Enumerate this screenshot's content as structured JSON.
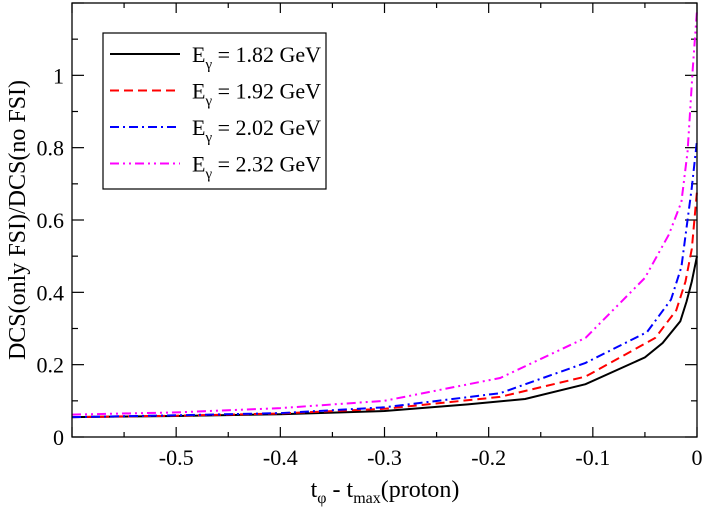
{
  "chart_data": {
    "type": "line",
    "title": "",
    "xlabel": {
      "main": "t",
      "sub1": "φ",
      "mid": " - t",
      "sub2": "max",
      "tail": "(proton)"
    },
    "ylabel": "DCS(only FSI)/DCS(no FSI)",
    "xlim": [
      -0.6,
      0
    ],
    "ylim": [
      0,
      1.2
    ],
    "xticks": [
      -0.5,
      -0.4,
      -0.3,
      -0.2,
      -0.1,
      0
    ],
    "xtick_labels": [
      "-0.5",
      "-0.4",
      "-0.3",
      "-0.2",
      "-0.1",
      "0"
    ],
    "yticks": [
      0,
      0.2,
      0.4,
      0.6,
      0.8,
      1
    ],
    "ytick_labels": [
      "0",
      "0.2",
      "0.4",
      "0.6",
      "0.8",
      "1"
    ],
    "grid": false,
    "legend_placement": "top-left",
    "series": [
      {
        "name": "E_γ = 1.82 GeV",
        "label_main": "E",
        "label_sub": "γ",
        "label_rest": " = 1.82 GeV",
        "color": "#000000",
        "dash": "solid",
        "x": [
          -0.6,
          -0.5,
          -0.4,
          -0.3,
          -0.22,
          -0.165,
          -0.107,
          -0.05,
          -0.033,
          -0.016,
          -0.01,
          -0.005,
          0
        ],
        "y": [
          0.055,
          0.058,
          0.063,
          0.072,
          0.09,
          0.105,
          0.146,
          0.22,
          0.26,
          0.32,
          0.375,
          0.43,
          0.5
        ]
      },
      {
        "name": "E_γ = 1.92 GeV",
        "label_main": "E",
        "label_sub": "γ",
        "label_rest": " = 1.92 GeV",
        "color": "#ff0000",
        "dash": "dashed",
        "x": [
          -0.6,
          -0.5,
          -0.4,
          -0.3,
          -0.189,
          -0.107,
          -0.04,
          -0.02,
          -0.011,
          -0.005,
          0
        ],
        "y": [
          0.055,
          0.059,
          0.065,
          0.078,
          0.111,
          0.167,
          0.274,
          0.35,
          0.43,
          0.52,
          0.68
        ]
      },
      {
        "name": "E_γ = 2.02 GeV",
        "label_main": "E",
        "label_sub": "γ",
        "label_rest": " = 2.02 GeV",
        "color": "#0000ff",
        "dash": "dash-dot",
        "x": [
          -0.6,
          -0.5,
          -0.4,
          -0.3,
          -0.189,
          -0.107,
          -0.048,
          -0.025,
          -0.015,
          -0.005,
          0
        ],
        "y": [
          0.055,
          0.06,
          0.066,
          0.082,
          0.121,
          0.205,
          0.29,
          0.38,
          0.47,
          0.69,
          0.82
        ]
      },
      {
        "name": "E_γ = 2.32 GeV",
        "label_main": "E",
        "label_sub": "γ",
        "label_rest": " = 2.32 GeV",
        "color": "#ff00ff",
        "dash": "dash-dot-dot",
        "x": [
          -0.6,
          -0.5,
          -0.4,
          -0.3,
          -0.189,
          -0.107,
          -0.05,
          -0.027,
          -0.015,
          -0.009,
          -0.004,
          0
        ],
        "y": [
          0.062,
          0.068,
          0.08,
          0.1,
          0.163,
          0.274,
          0.44,
          0.56,
          0.65,
          0.79,
          1.02,
          1.18
        ]
      }
    ]
  }
}
